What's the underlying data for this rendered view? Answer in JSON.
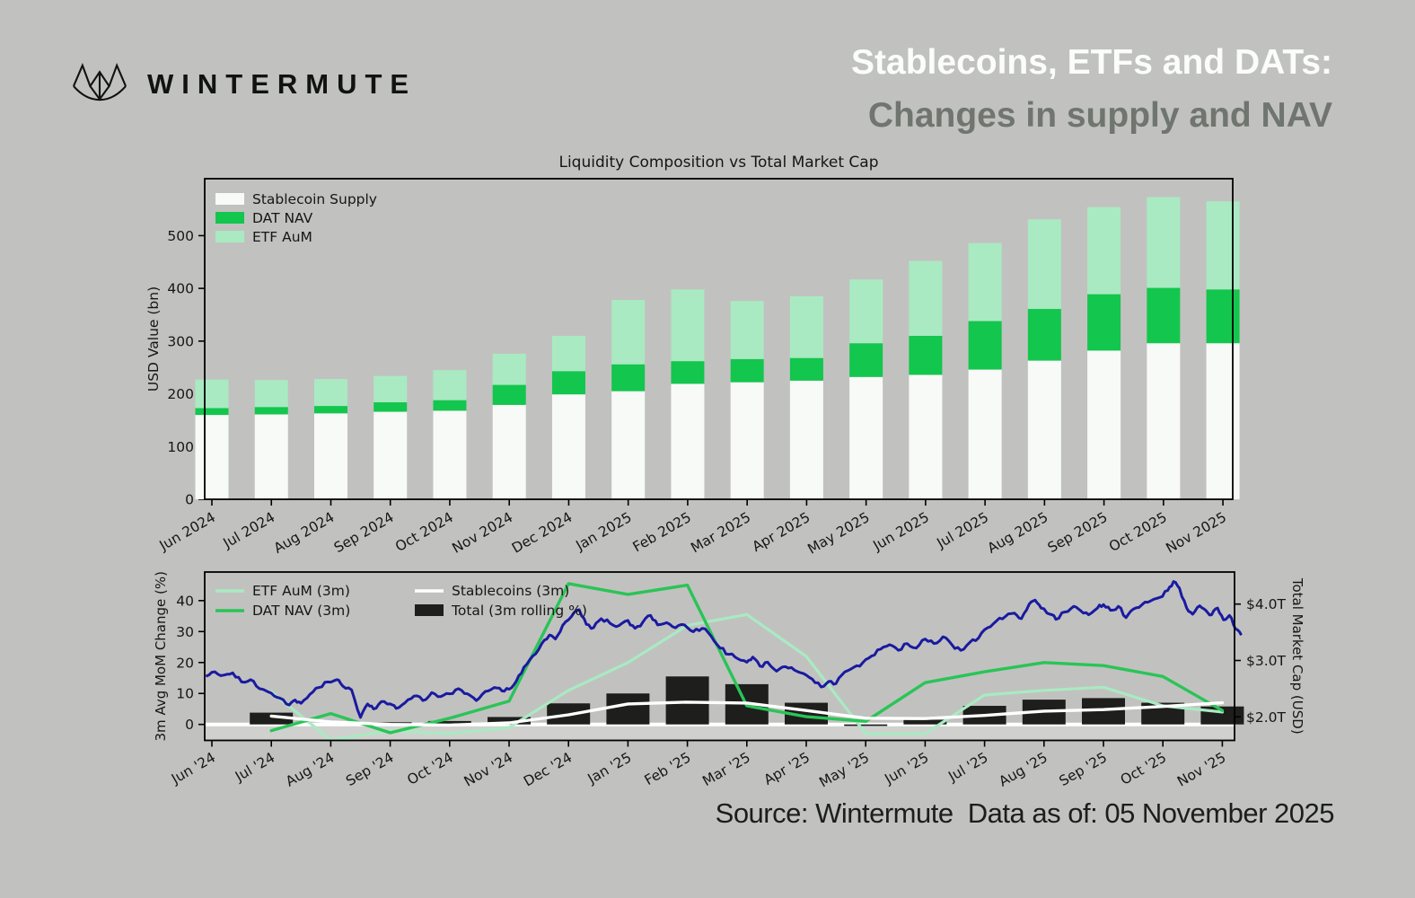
{
  "header": {
    "brand": "WINTERMUTE",
    "title_line1": "Stablecoins, ETFs and DATs:",
    "title_line2": "Changes in supply and NAV"
  },
  "source_note": "Source: Wintermute  Data as of: 05 November 2025",
  "colors": {
    "background": "#c1c2bf",
    "stablecoin_white": "#f8faf7",
    "dat_green": "#13c64d",
    "etf_mint": "#a9eac2",
    "dat_line_green": "#2ac457",
    "stablecoin_line_white": "#ffffff",
    "total_bar_black": "#1e1e1c",
    "market_cap_navy": "#1a1aa0",
    "axis_text": "#151715",
    "title_white": "#fbfdfa",
    "subtitle_gray": "#70756f"
  },
  "chart_data": [
    {
      "type": "bar",
      "stacked": true,
      "title": "Liquidity Composition vs Total Market Cap",
      "ylabel": "USD Value (bn)",
      "ylim": [
        0,
        608
      ],
      "yticks": [
        0,
        100,
        200,
        300,
        400,
        500
      ],
      "grid": false,
      "legend_position": "upper left",
      "categories": [
        "Jun 2024",
        "Jul 2024",
        "Aug 2024",
        "Sep 2024",
        "Oct 2024",
        "Nov 2024",
        "Dec 2024",
        "Jan 2025",
        "Feb 2025",
        "Mar 2025",
        "Apr 2025",
        "May 2025",
        "Jun 2025",
        "Jul 2025",
        "Aug 2025",
        "Sep 2025",
        "Oct 2025",
        "Nov 2025"
      ],
      "series": [
        {
          "name": "Stablecoin Supply",
          "color": "#f8faf7",
          "values": [
            160,
            161,
            163,
            166,
            168,
            179,
            199,
            205,
            219,
            222,
            225,
            232,
            236,
            246,
            263,
            282,
            296,
            296
          ]
        },
        {
          "name": "DAT NAV",
          "color": "#13c64d",
          "values": [
            13,
            14,
            14,
            18,
            20,
            38,
            44,
            51,
            43,
            44,
            43,
            64,
            74,
            92,
            98,
            107,
            105,
            102
          ]
        },
        {
          "name": "ETF AuM",
          "color": "#a9eac2",
          "values": [
            54,
            51,
            51,
            50,
            57,
            59,
            67,
            122,
            136,
            110,
            117,
            121,
            142,
            148,
            170,
            165,
            172,
            167
          ]
        }
      ]
    },
    {
      "type": "combo",
      "ylabel_left": "3m Avg MoM Change (%)",
      "ylabel_right": "Total Market Cap (USD)",
      "ylim_left": [
        -5.2,
        49.2
      ],
      "yticks_left": [
        0,
        10,
        20,
        30,
        40
      ],
      "ylim_right": [
        1.58,
        4.57
      ],
      "yticks_right": [
        {
          "v": 2,
          "label": "$2.0T"
        },
        {
          "v": 3,
          "label": "$3.0T"
        },
        {
          "v": 4,
          "label": "$4.0T"
        }
      ],
      "legend_position": "upper left",
      "categories": [
        "Jun '24",
        "Jul '24",
        "Aug '24",
        "Sep '24",
        "Oct '24",
        "Nov '24",
        "Dec '24",
        "Jan '25",
        "Feb '25",
        "Mar '25",
        "Apr '25",
        "May '25",
        "Jun '25",
        "Jul '25",
        "Aug '25",
        "Sep '25",
        "Oct '25",
        "Nov '25"
      ],
      "bars": {
        "name": "Total (3m rolling %)",
        "color": "#1e1e1c",
        "values": [
          null,
          3.8,
          0,
          0.7,
          1.1,
          2.4,
          6.8,
          10,
          15.5,
          13,
          7,
          -0.5,
          1.5,
          6,
          8,
          8.5,
          7,
          5.8
        ]
      },
      "lines": [
        {
          "name": "ETF AuM (3m)",
          "color": "#a9eac2",
          "values": [
            null,
            10.5,
            -5,
            -2,
            -3,
            -1,
            11,
            20,
            32,
            35.5,
            22,
            -3,
            -3,
            9.5,
            11,
            12,
            6,
            4
          ]
        },
        {
          "name": "DAT NAV (3m)",
          "color": "#2ac457",
          "values": [
            null,
            -2,
            3.5,
            -2.7,
            2,
            7.5,
            45.5,
            42,
            45,
            6,
            2.5,
            1,
            13.5,
            17,
            20,
            19,
            15.5,
            4.5
          ]
        },
        {
          "name": "Stablecoins (3m)",
          "color": "#ffffff",
          "values": [
            null,
            2.7,
            0.8,
            0,
            -0.2,
            0.5,
            3.1,
            6.6,
            7.2,
            6.9,
            4.5,
            2,
            1.9,
            2.9,
            4.3,
            4.8,
            5.8,
            7
          ]
        }
      ],
      "market_cap": {
        "name": "Total Market Cap (USD)",
        "color": "#1a1aa0",
        "unit": "$T",
        "points": [
          [
            -0.1,
            2.72
          ],
          [
            0.05,
            2.8
          ],
          [
            0.2,
            2.74
          ],
          [
            0.35,
            2.78
          ],
          [
            0.5,
            2.62
          ],
          [
            0.65,
            2.66
          ],
          [
            0.8,
            2.5
          ],
          [
            1.0,
            2.42
          ],
          [
            1.15,
            2.33
          ],
          [
            1.3,
            2.21
          ],
          [
            1.4,
            2.3
          ],
          [
            1.5,
            2.24
          ],
          [
            1.65,
            2.4
          ],
          [
            1.8,
            2.52
          ],
          [
            1.95,
            2.62
          ],
          [
            2.1,
            2.66
          ],
          [
            2.2,
            2.55
          ],
          [
            2.35,
            2.48
          ],
          [
            2.5,
            1.99
          ],
          [
            2.62,
            2.23
          ],
          [
            2.72,
            2.14
          ],
          [
            2.85,
            2.27
          ],
          [
            3.0,
            2.23
          ],
          [
            3.1,
            2.15
          ],
          [
            3.25,
            2.25
          ],
          [
            3.4,
            2.37
          ],
          [
            3.55,
            2.29
          ],
          [
            3.7,
            2.43
          ],
          [
            3.85,
            2.36
          ],
          [
            4.0,
            2.41
          ],
          [
            4.15,
            2.5
          ],
          [
            4.3,
            2.41
          ],
          [
            4.45,
            2.29
          ],
          [
            4.6,
            2.45
          ],
          [
            4.75,
            2.52
          ],
          [
            4.88,
            2.46
          ],
          [
            5.0,
            2.49
          ],
          [
            5.12,
            2.63
          ],
          [
            5.25,
            2.88
          ],
          [
            5.4,
            3.08
          ],
          [
            5.55,
            3.3
          ],
          [
            5.68,
            3.45
          ],
          [
            5.78,
            3.38
          ],
          [
            5.9,
            3.62
          ],
          [
            6.05,
            3.78
          ],
          [
            6.18,
            3.9
          ],
          [
            6.3,
            3.64
          ],
          [
            6.42,
            3.58
          ],
          [
            6.55,
            3.74
          ],
          [
            6.7,
            3.66
          ],
          [
            6.85,
            3.62
          ],
          [
            7.0,
            3.71
          ],
          [
            7.12,
            3.57
          ],
          [
            7.25,
            3.68
          ],
          [
            7.38,
            3.8
          ],
          [
            7.5,
            3.63
          ],
          [
            7.65,
            3.67
          ],
          [
            7.8,
            3.58
          ],
          [
            7.95,
            3.63
          ],
          [
            8.1,
            3.51
          ],
          [
            8.25,
            3.57
          ],
          [
            8.4,
            3.43
          ],
          [
            8.55,
            3.22
          ],
          [
            8.7,
            3.11
          ],
          [
            8.85,
            3.03
          ],
          [
            9.0,
            2.97
          ],
          [
            9.1,
            3.06
          ],
          [
            9.22,
            2.9
          ],
          [
            9.35,
            2.97
          ],
          [
            9.5,
            2.81
          ],
          [
            9.65,
            2.89
          ],
          [
            9.8,
            2.83
          ],
          [
            9.95,
            2.77
          ],
          [
            10.1,
            2.67
          ],
          [
            10.25,
            2.53
          ],
          [
            10.38,
            2.63
          ],
          [
            10.5,
            2.59
          ],
          [
            10.65,
            2.8
          ],
          [
            10.8,
            2.88
          ],
          [
            10.95,
            2.96
          ],
          [
            11.1,
            3.08
          ],
          [
            11.25,
            3.2
          ],
          [
            11.4,
            3.28
          ],
          [
            11.55,
            3.18
          ],
          [
            11.7,
            3.3
          ],
          [
            11.85,
            3.22
          ],
          [
            12.0,
            3.38
          ],
          [
            12.15,
            3.3
          ],
          [
            12.3,
            3.42
          ],
          [
            12.45,
            3.28
          ],
          [
            12.6,
            3.18
          ],
          [
            12.75,
            3.32
          ],
          [
            12.9,
            3.4
          ],
          [
            13.05,
            3.58
          ],
          [
            13.2,
            3.7
          ],
          [
            13.35,
            3.78
          ],
          [
            13.5,
            3.84
          ],
          [
            13.62,
            3.74
          ],
          [
            13.75,
            4.0
          ],
          [
            13.85,
            4.07
          ],
          [
            13.95,
            3.93
          ],
          [
            14.1,
            3.82
          ],
          [
            14.2,
            3.73
          ],
          [
            14.35,
            3.86
          ],
          [
            14.5,
            3.96
          ],
          [
            14.62,
            3.88
          ],
          [
            14.75,
            3.81
          ],
          [
            14.9,
            3.93
          ],
          [
            15.0,
            3.99
          ],
          [
            15.12,
            3.89
          ],
          [
            15.25,
            3.96
          ],
          [
            15.38,
            3.76
          ],
          [
            15.5,
            3.91
          ],
          [
            15.65,
            3.99
          ],
          [
            15.8,
            4.06
          ],
          [
            15.95,
            4.12
          ],
          [
            16.08,
            4.24
          ],
          [
            16.18,
            4.4
          ],
          [
            16.28,
            4.28
          ],
          [
            16.4,
            3.93
          ],
          [
            16.5,
            3.82
          ],
          [
            16.62,
            3.97
          ],
          [
            16.72,
            3.89
          ],
          [
            16.82,
            3.81
          ],
          [
            16.92,
            3.93
          ],
          [
            17.02,
            3.72
          ],
          [
            17.12,
            3.8
          ],
          [
            17.22,
            3.56
          ],
          [
            17.32,
            3.45
          ]
        ]
      }
    }
  ]
}
